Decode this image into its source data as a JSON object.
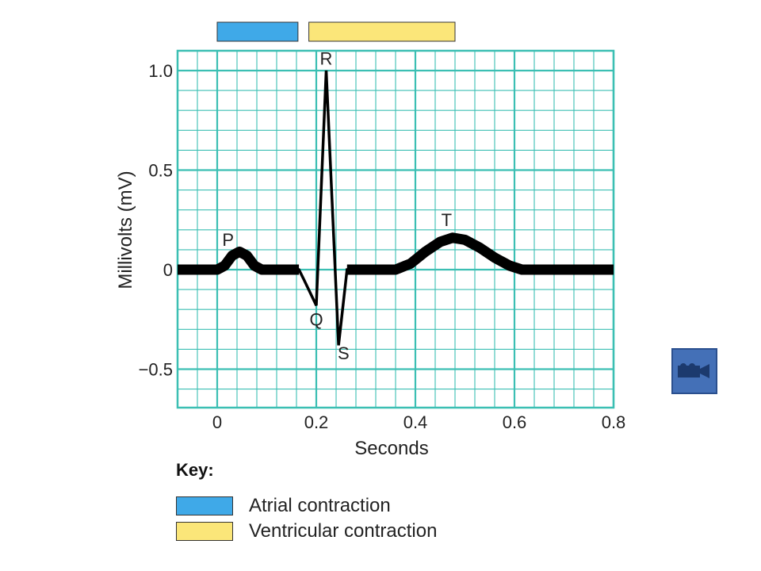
{
  "chart_data": {
    "type": "line",
    "xlabel": "Seconds",
    "ylabel": "Millivolts (mV)",
    "xlim": [
      -0.08,
      0.8
    ],
    "ylim": [
      -0.68,
      1.1
    ],
    "x_ticks": [
      0,
      0.2,
      0.4,
      0.6,
      0.8
    ],
    "x_tick_labels": [
      "0",
      "0.2",
      "0.4",
      "0.6",
      "0.8"
    ],
    "y_ticks": [
      1.0,
      0.5,
      0,
      -0.5
    ],
    "y_tick_labels": [
      "1.0",
      "0.5",
      "0",
      "−0.5"
    ],
    "grid": true,
    "grid_color": "#3bbfb3",
    "trace_color": "#000000",
    "series": [
      {
        "points": [
          [
            -0.08,
            0
          ],
          [
            0.0,
            0
          ],
          [
            0.015,
            0.02
          ],
          [
            0.03,
            0.07
          ],
          [
            0.045,
            0.09
          ],
          [
            0.06,
            0.07
          ],
          [
            0.075,
            0.02
          ],
          [
            0.09,
            0
          ],
          [
            0.165,
            0
          ],
          [
            0.175,
            -0.05
          ],
          [
            0.2,
            -0.18
          ],
          [
            0.22,
            1.0
          ],
          [
            0.245,
            -0.38
          ],
          [
            0.262,
            0
          ],
          [
            0.36,
            0
          ],
          [
            0.39,
            0.03
          ],
          [
            0.42,
            0.09
          ],
          [
            0.45,
            0.14
          ],
          [
            0.475,
            0.16
          ],
          [
            0.5,
            0.15
          ],
          [
            0.53,
            0.11
          ],
          [
            0.56,
            0.06
          ],
          [
            0.59,
            0.02
          ],
          [
            0.615,
            0
          ],
          [
            0.8,
            0
          ]
        ]
      }
    ],
    "wave_labels": [
      {
        "text": "P",
        "x": 0.022,
        "y": 0.12
      },
      {
        "text": "R",
        "x": 0.22,
        "y": 1.03
      },
      {
        "text": "Q",
        "x": 0.2,
        "y": -0.28
      },
      {
        "text": "S",
        "x": 0.255,
        "y": -0.45
      },
      {
        "text": "T",
        "x": 0.463,
        "y": 0.22
      }
    ],
    "bars": [
      {
        "name": "Atrial contraction",
        "start": 0.0,
        "end": 0.163,
        "color": "#3fa9e8"
      },
      {
        "name": "Ventricular contraction",
        "start": 0.185,
        "end": 0.48,
        "color": "#fbe679"
      }
    ]
  },
  "key": {
    "title": "Key:",
    "items": [
      {
        "label": "Atrial contraction",
        "color": "#3fa9e8"
      },
      {
        "label": "Ventricular contraction",
        "color": "#fbe679"
      }
    ]
  },
  "video_button": {
    "icon": "video-camera-icon",
    "color": "#4470b7"
  }
}
